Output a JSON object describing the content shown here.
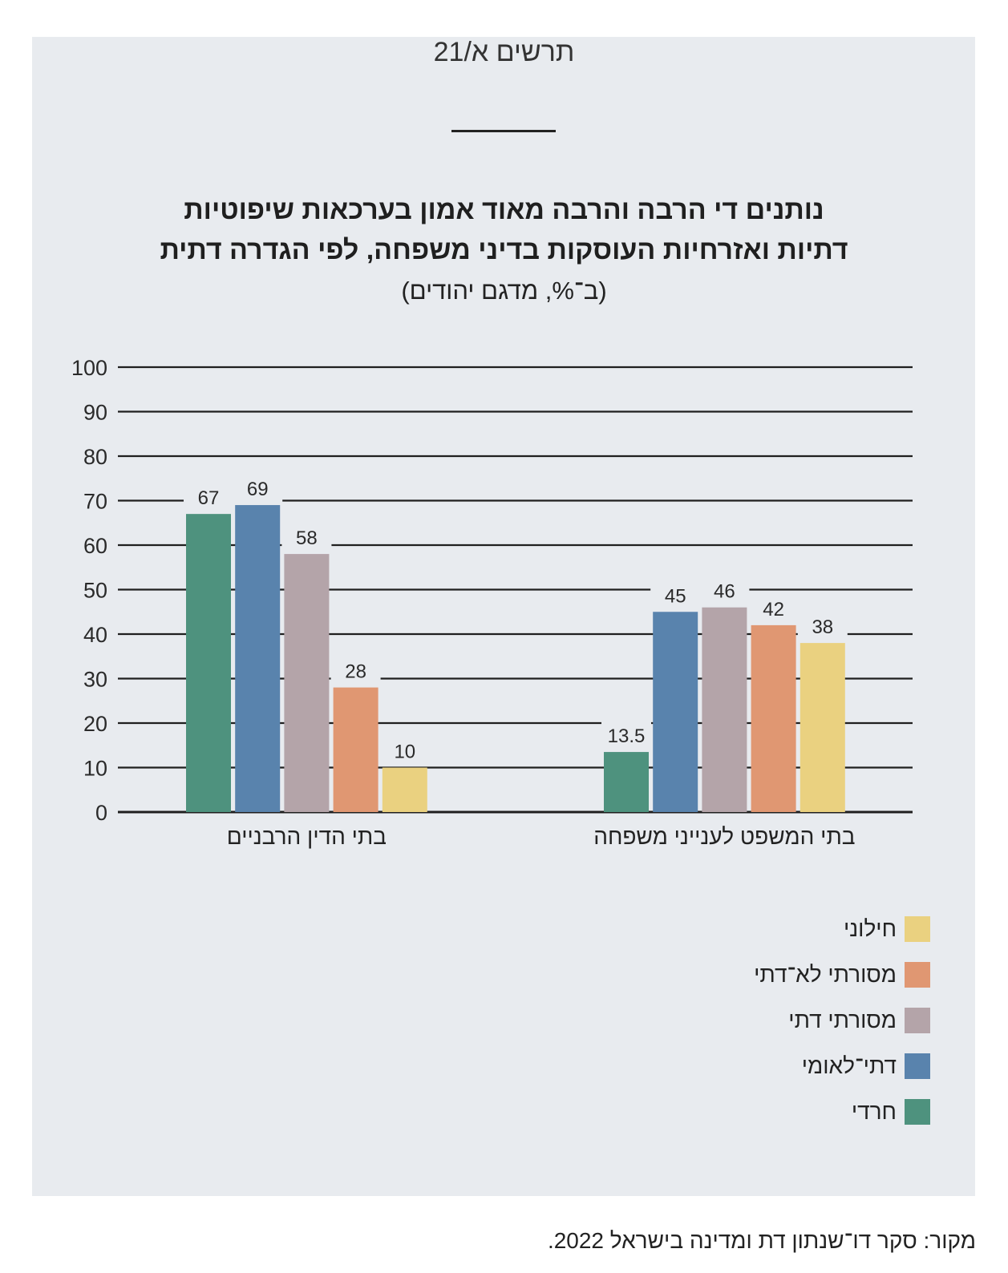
{
  "figure_label": "תרשים א/21",
  "title_line1": "נותנים די הרבה והרבה מאוד אמון בערכאות שיפוטיות",
  "title_line2": "דתיות ואזרחיות העוסקות בדיני משפחה, לפי הגדרה דתית",
  "subtitle": "(ב־%, מדגם יהודים)",
  "source": "מקור: סקר דו־שנתון דת ומדינה בישראל 2022.",
  "colors": {
    "panel_bg": "#e8ebef",
    "charedi": "#4e927e",
    "dati_leumi": "#5983ad",
    "masorti_dati": "#b4a4a9",
    "masorti_lo_dati": "#e09772",
    "chiloni": "#ead180"
  },
  "chart_data": {
    "type": "bar",
    "categories": [
      "בתי הדין הרבניים",
      "בתי המשפט לענייני משפחה"
    ],
    "series": [
      {
        "name": "חרדי",
        "color": "#4e927e",
        "values": [
          67,
          13.5
        ],
        "labels": [
          "67",
          "13.5"
        ]
      },
      {
        "name": "דתי־לאומי",
        "color": "#5983ad",
        "values": [
          69,
          45
        ],
        "labels": [
          "69",
          "45"
        ]
      },
      {
        "name": "מסורתי דתי",
        "color": "#b4a4a9",
        "values": [
          58,
          46
        ],
        "labels": [
          "58",
          "46"
        ]
      },
      {
        "name": "מסורתי לא־דתי",
        "color": "#e09772",
        "values": [
          28,
          42
        ],
        "labels": [
          "28",
          "42"
        ]
      },
      {
        "name": "חילוני",
        "color": "#ead180",
        "values": [
          10,
          38
        ],
        "labels": [
          "10",
          "38"
        ]
      }
    ],
    "ylim": [
      0,
      100
    ],
    "yticks": [
      "0",
      "10",
      "20",
      "30",
      "40",
      "50",
      "60",
      "70",
      "80",
      "90",
      "100"
    ],
    "grid": true,
    "legend_position": "bottom-right",
    "legend_order": [
      "חילוני",
      "מסורתי לא־דתי",
      "מסורתי דתי",
      "דתי־לאומי",
      "חרדי"
    ]
  }
}
